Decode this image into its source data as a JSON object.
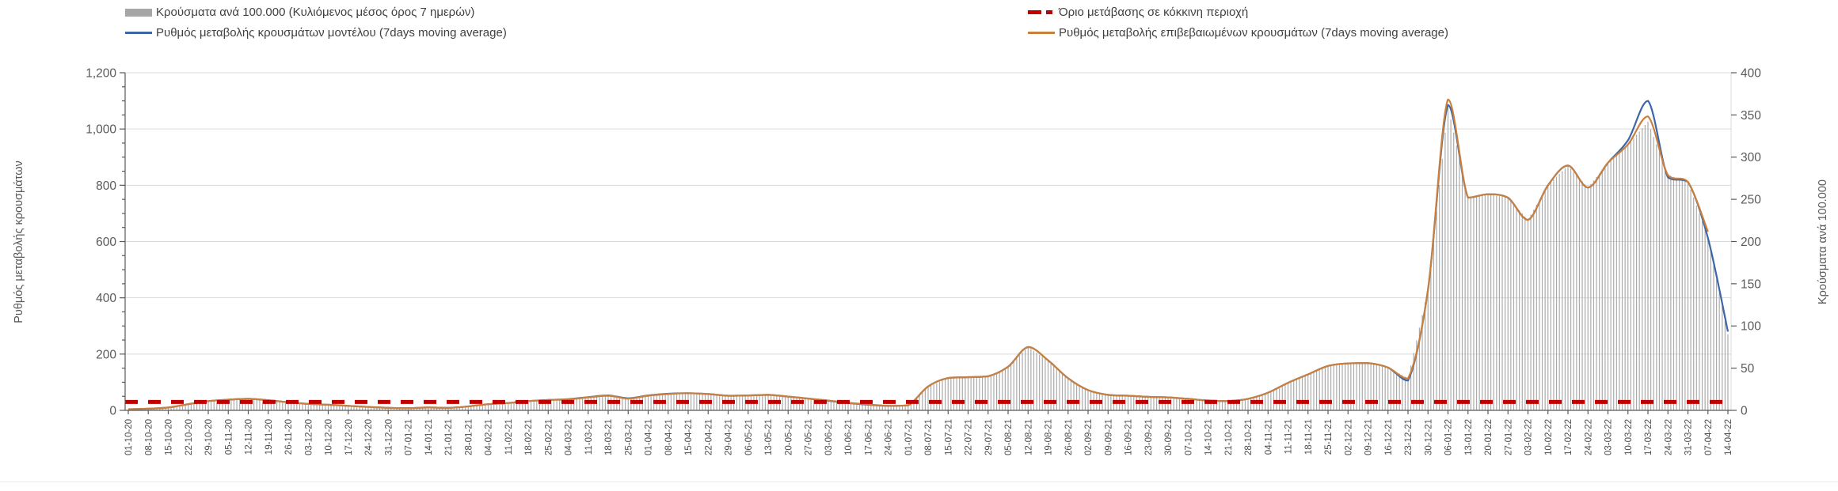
{
  "legend": {
    "items": [
      {
        "label": "Κρούσματα ανά 100.000 (Κυλιόμενος μέσος όρος 7 ημερών)",
        "swatch": "bar",
        "color": "#A6A6A6"
      },
      {
        "label": "Ρυθμός μεταβολής κρουσμάτων μοντέλου (7days moving average)",
        "swatch": "line",
        "color": "#3C66A6"
      },
      {
        "label": "Όριο μετάβασης σε κόκκινη περιοχή",
        "swatch": "dashed-line",
        "color": "#C00000"
      },
      {
        "label": "Ρυθμός μεταβολής επιβεβαιωμένων κρουσμάτων (7days moving average)",
        "swatch": "line",
        "color": "#C9803E"
      }
    ]
  },
  "chart_data": {
    "type": "bar",
    "subtype": "daily-bars-with-lines-combo",
    "grid": "horizontal",
    "legend_position": "top",
    "left_axis": {
      "title": "Ρυθμός μεταβολής κρουσμάτων",
      "min": 0,
      "max": 1200,
      "major_step": 200,
      "minor_step": 50,
      "tick_labels": [
        "0",
        "200",
        "400",
        "600",
        "800",
        "1,000",
        "1,200"
      ]
    },
    "right_axis": {
      "title": "Κρούσματα ανά 100.000",
      "min": 0,
      "max": 400,
      "step": 50,
      "tick_labels": [
        "0",
        "50",
        "100",
        "150",
        "200",
        "250",
        "300",
        "350",
        "400"
      ]
    },
    "threshold": {
      "name": "Όριο μετάβασης σε κόκκινη περιοχή",
      "axis": "left",
      "value": 30,
      "color": "#C00000",
      "style": "dashed"
    },
    "categories": [
      "01-10-20",
      "08-10-20",
      "15-10-20",
      "22-10-20",
      "29-10-20",
      "05-11-20",
      "12-11-20",
      "19-11-20",
      "26-11-20",
      "03-12-20",
      "10-12-20",
      "17-12-20",
      "24-12-20",
      "31-12-20",
      "07-01-21",
      "14-01-21",
      "21-01-21",
      "28-01-21",
      "04-02-21",
      "11-02-21",
      "18-02-21",
      "25-02-21",
      "04-03-21",
      "11-03-21",
      "18-03-21",
      "25-03-21",
      "01-04-21",
      "08-04-21",
      "15-04-21",
      "22-04-21",
      "29-04-21",
      "06-05-21",
      "13-05-21",
      "20-05-21",
      "27-05-21",
      "03-06-21",
      "10-06-21",
      "17-06-21",
      "24-06-21",
      "01-07-21",
      "08-07-21",
      "15-07-21",
      "22-07-21",
      "29-07-21",
      "05-08-21",
      "12-08-21",
      "19-08-21",
      "26-08-21",
      "02-09-21",
      "09-09-21",
      "16-09-21",
      "23-09-21",
      "30-09-21",
      "07-10-21",
      "14-10-21",
      "21-10-21",
      "28-10-21",
      "04-11-21",
      "11-11-21",
      "18-11-21",
      "25-11-21",
      "02-12-21",
      "09-12-21",
      "16-12-21",
      "23-12-21",
      "30-12-21",
      "06-01-22",
      "13-01-22",
      "20-01-22",
      "27-01-22",
      "03-02-22",
      "10-02-22",
      "17-02-22",
      "24-02-22",
      "03-03-22",
      "10-03-22",
      "17-03-22",
      "24-03-22",
      "31-03-22",
      "07-04-22",
      "14-04-22"
    ],
    "series": [
      {
        "name": "Κρούσματα ανά 100.000 (Κυλιόμενος μέσος όρος 7 ημερών)",
        "type": "bar",
        "axis": "right",
        "color": "#ABABAB",
        "values": [
          1,
          2,
          3,
          7,
          11,
          13,
          14,
          12,
          10,
          8,
          7,
          5,
          4,
          3,
          3,
          3,
          3,
          5,
          7,
          9,
          11,
          12,
          13,
          15,
          17,
          14,
          17,
          19,
          20,
          19,
          17,
          18,
          18,
          16,
          14,
          12,
          9,
          7,
          5,
          6,
          28,
          38,
          39,
          40,
          52,
          75,
          59,
          38,
          24,
          18,
          17,
          16,
          15,
          14,
          12,
          11,
          14,
          21,
          33,
          43,
          53,
          56,
          56,
          51,
          38,
          143,
          360,
          252,
          256,
          252,
          226,
          267,
          290,
          264,
          293,
          315,
          342,
          279,
          271,
          205,
          90
        ]
      },
      {
        "name": "Ρυθμός μεταβολής κρουσμάτων μοντέλου (7days moving average)",
        "type": "line",
        "axis": "left",
        "color": "#3C66A6",
        "values": [
          4,
          6,
          10,
          22,
          33,
          38,
          41,
          36,
          29,
          23,
          20,
          16,
          12,
          9,
          8,
          10,
          9,
          14,
          22,
          26,
          33,
          37,
          40,
          47,
          53,
          43,
          53,
          59,
          61,
          58,
          52,
          53,
          55,
          49,
          42,
          34,
          26,
          20,
          16,
          18,
          85,
          115,
          118,
          121,
          155,
          225,
          178,
          114,
          72,
          55,
          52,
          48,
          46,
          41,
          35,
          33,
          41,
          63,
          98,
          128,
          158,
          167,
          168,
          152,
          106,
          430,
          1085,
          756,
          768,
          756,
          677,
          800,
          870,
          792,
          880,
          960,
          1100,
          828,
          812,
          612,
          280
        ]
      },
      {
        "name": "Ρυθμός μεταβολής επιβεβαιωμένων κρουσμάτων (7days moving average)",
        "type": "line",
        "axis": "left",
        "color": "#C9803E",
        "values": [
          4,
          6,
          10,
          22,
          33,
          38,
          41,
          36,
          29,
          23,
          20,
          16,
          12,
          9,
          8,
          10,
          9,
          14,
          22,
          26,
          33,
          37,
          39,
          46,
          52,
          42,
          52,
          58,
          61,
          58,
          52,
          53,
          55,
          49,
          42,
          35,
          27,
          21,
          16,
          18,
          85,
          115,
          118,
          121,
          155,
          225,
          178,
          114,
          72,
          55,
          52,
          48,
          46,
          41,
          35,
          33,
          41,
          63,
          98,
          128,
          158,
          167,
          168,
          152,
          113,
          430,
          1105,
          756,
          768,
          756,
          677,
          800,
          870,
          792,
          880,
          945,
          1045,
          836,
          812,
          635,
          null
        ]
      }
    ]
  }
}
